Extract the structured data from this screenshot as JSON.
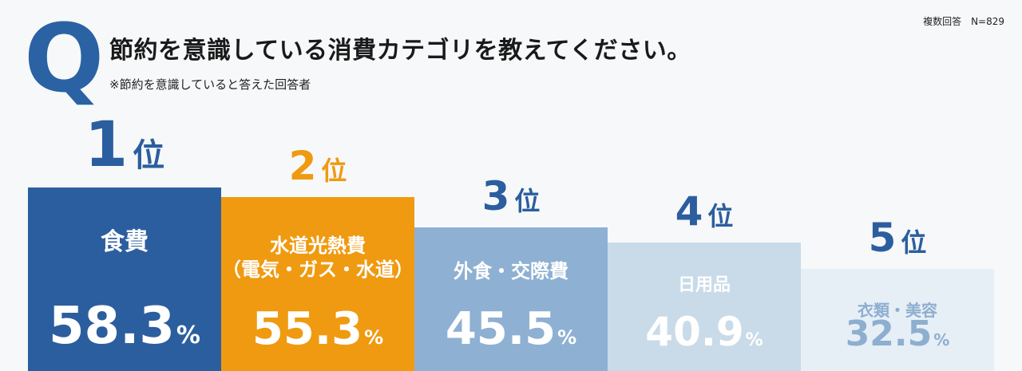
{
  "header": {
    "note": "複数回答　N=829",
    "q_letter": "Q",
    "title": "節約を意識している消費カテゴリを教えてください。",
    "subtitle": "※節約を意識していると答えた回答者"
  },
  "colors": {
    "q": "#2a62a4",
    "bar1": "#2b5e9e",
    "bar2": "#ef9a10",
    "bar3": "#8eb0d2",
    "bar4": "#c9dbe8",
    "bar5": "#e6eff6",
    "rank_blue": "#2b5e9e",
    "rank_orange": "#ef9a10",
    "bar5_text": "#8eaed0"
  },
  "chart_data": {
    "type": "bar",
    "title": "節約を意識している消費カテゴリを教えてください。",
    "ylabel": "",
    "unit": "%",
    "rank_suffix": "位",
    "items": [
      {
        "rank": "1",
        "category_lines": [
          "食費"
        ],
        "value": 58.3,
        "value_label": "58.3"
      },
      {
        "rank": "2",
        "category_lines": [
          "水道光熱費",
          "（電気・ガス・水道）"
        ],
        "value": 55.3,
        "value_label": "55.3"
      },
      {
        "rank": "3",
        "category_lines": [
          "外食・交際費"
        ],
        "value": 45.5,
        "value_label": "45.5"
      },
      {
        "rank": "4",
        "category_lines": [
          "日用品"
        ],
        "value": 40.9,
        "value_label": "40.9"
      },
      {
        "rank": "5",
        "category_lines": [
          "衣類・美容"
        ],
        "value": 32.5,
        "value_label": "32.5"
      }
    ]
  }
}
